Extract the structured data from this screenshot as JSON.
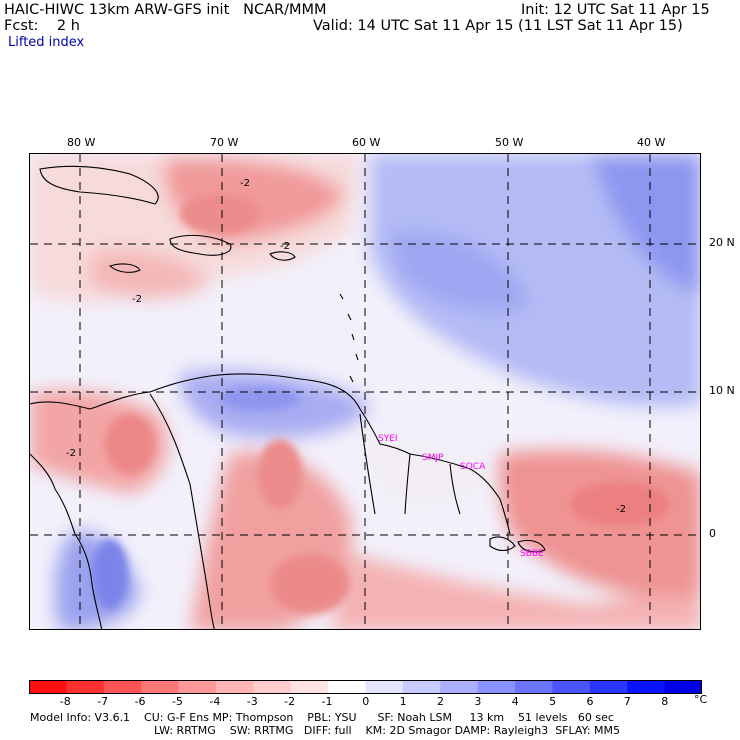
{
  "header": {
    "model_title": "HAIC-HIWC 13km ARW-GFS init   NCAR/MMM",
    "init": "Init: 12 UTC Sat 11 Apr 15",
    "fcst": "Fcst:    2 h",
    "valid": "Valid: 14 UTC Sat 11 Apr 15 (11 LST Sat 11 Apr 15)",
    "field": "Lifted index"
  },
  "map": {
    "lon_labels": [
      "80 W",
      "70 W",
      "60 W",
      "50 W",
      "40 W"
    ],
    "lat_labels": [
      "20 N",
      "10 N",
      "0"
    ],
    "contour_labels": [
      "-2",
      "-2",
      "-2",
      "-2",
      "-2"
    ],
    "stations": [
      "SYEI",
      "SMJP",
      "SOCA",
      "SBBE"
    ],
    "station_color": "#ff00ff"
  },
  "colorbar": {
    "unit": "°C",
    "labels": [
      "-8",
      "-7",
      "-6",
      "-5",
      "-4",
      "-3",
      "-2",
      "-1",
      "0",
      "1",
      "2",
      "3",
      "4",
      "5",
      "6",
      "7",
      "8"
    ],
    "colors": [
      "#ff1010",
      "#ff3030",
      "#ff5555",
      "#ff7777",
      "#ff9999",
      "#ffb5b5",
      "#ffcccc",
      "#ffe2e2",
      "#ffffff",
      "#e4e6ff",
      "#c8ccff",
      "#aab0ff",
      "#8a92ff",
      "#6a74ff",
      "#4a55ff",
      "#2a36ff",
      "#0a14ff",
      "#0000e6"
    ]
  },
  "footer": {
    "line1": "Model Info: V3.6.1    CU: G-F Ens MP: Thompson    PBL: YSU      SF: Noah LSM     13 km    51 levels   60 sec",
    "line2": "LW: RRTMG    SW: RRTMG   DIFF: full    KM: 2D Smagor DAMP: Rayleigh3  SFLAY: MM5"
  }
}
